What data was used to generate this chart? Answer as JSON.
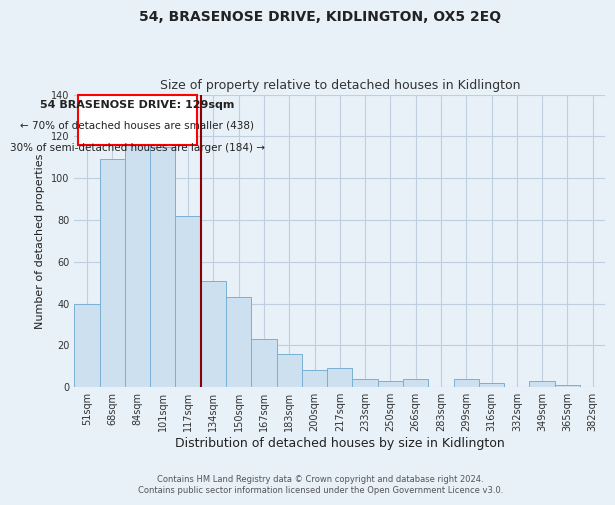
{
  "title": "54, BRASENOSE DRIVE, KIDLINGTON, OX5 2EQ",
  "subtitle": "Size of property relative to detached houses in Kidlington",
  "xlabel": "Distribution of detached houses by size in Kidlington",
  "ylabel": "Number of detached properties",
  "categories": [
    "51sqm",
    "68sqm",
    "84sqm",
    "101sqm",
    "117sqm",
    "134sqm",
    "150sqm",
    "167sqm",
    "183sqm",
    "200sqm",
    "217sqm",
    "233sqm",
    "250sqm",
    "266sqm",
    "283sqm",
    "299sqm",
    "316sqm",
    "332sqm",
    "349sqm",
    "365sqm",
    "382sqm"
  ],
  "values": [
    40,
    109,
    116,
    115,
    82,
    51,
    43,
    23,
    16,
    8,
    9,
    4,
    3,
    4,
    0,
    4,
    2,
    0,
    3,
    1,
    0
  ],
  "bar_color": "#cce0f0",
  "bar_edge_color": "#7ab0d4",
  "ylim": [
    0,
    140
  ],
  "yticks": [
    0,
    20,
    40,
    60,
    80,
    100,
    120,
    140
  ],
  "red_line_index": 4,
  "annotation_title": "54 BRASENOSE DRIVE: 129sqm",
  "annotation_line1": "← 70% of detached houses are smaller (438)",
  "annotation_line2": "30% of semi-detached houses are larger (184) →",
  "footer_line1": "Contains HM Land Registry data © Crown copyright and database right 2024.",
  "footer_line2": "Contains public sector information licensed under the Open Government Licence v3.0.",
  "background_color": "#e8f0f8",
  "plot_background_color": "#e8f0f8",
  "grid_color": "#c0cfe0",
  "title_fontsize": 10,
  "subtitle_fontsize": 9,
  "xlabel_fontsize": 9,
  "ylabel_fontsize": 8,
  "tick_fontsize": 7,
  "footer_fontsize": 6,
  "annotation_title_fontsize": 8,
  "annotation_text_fontsize": 7.5
}
